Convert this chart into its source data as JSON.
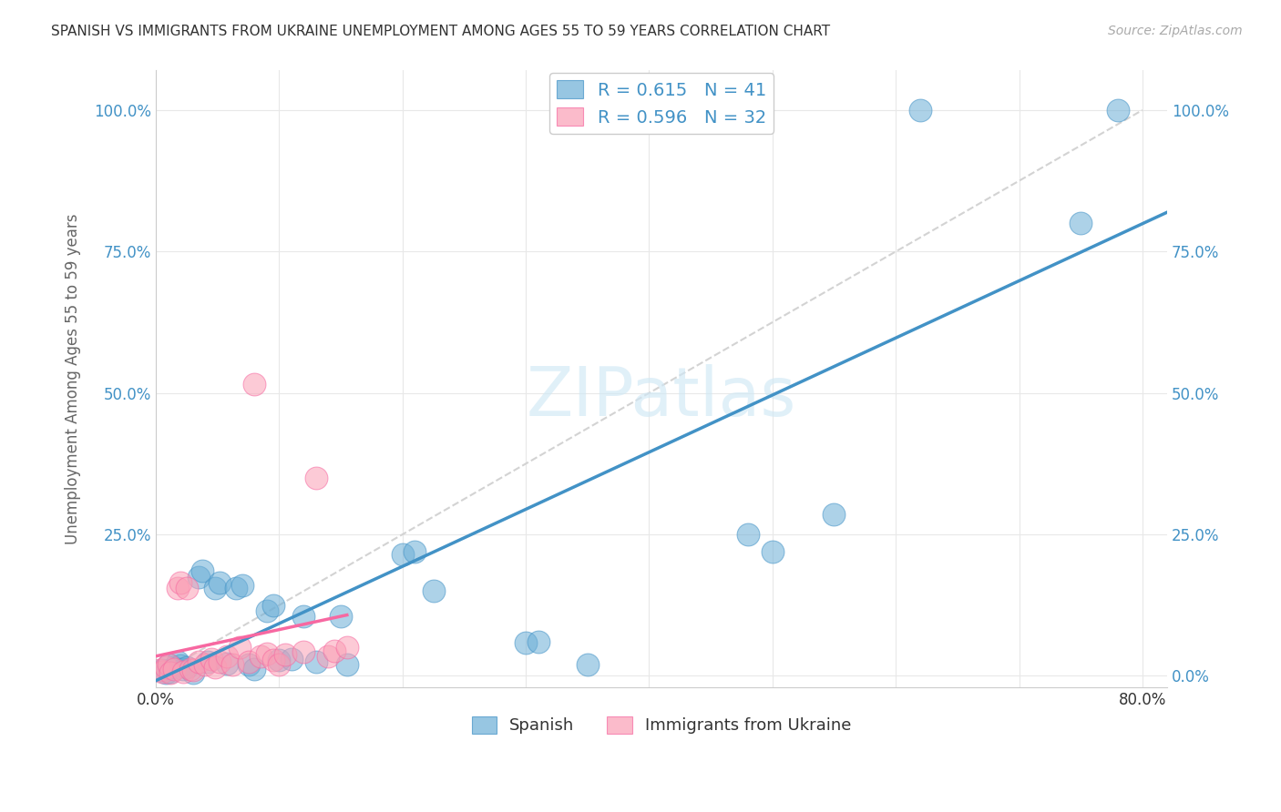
{
  "title": "SPANISH VS IMMIGRANTS FROM UKRAINE UNEMPLOYMENT AMONG AGES 55 TO 59 YEARS CORRELATION CHART",
  "source": "Source: ZipAtlas.com",
  "ylabel_label": "Unemployment Among Ages 55 to 59 years",
  "legend1_r": "0.615",
  "legend1_n": "41",
  "legend2_r": "0.596",
  "legend2_n": "32",
  "legend_label1": "Spanish",
  "legend_label2": "Immigrants from Ukraine",
  "blue_color": "#6baed6",
  "pink_color": "#fa9fb5",
  "reg_blue": "#4292c6",
  "reg_pink": "#f768a1",
  "r_n_color": "#4292c6",
  "blue_x": [
    0.005,
    0.008,
    0.01,
    0.012,
    0.015,
    0.018,
    0.02,
    0.022,
    0.025,
    0.03,
    0.035,
    0.038,
    0.042,
    0.048,
    0.052,
    0.058,
    0.065,
    0.07,
    0.075,
    0.08,
    0.09,
    0.095,
    0.1,
    0.11,
    0.12,
    0.13,
    0.15,
    0.155,
    0.2,
    0.21,
    0.225,
    0.3,
    0.31,
    0.35,
    0.36,
    0.48,
    0.5,
    0.55,
    0.62,
    0.75,
    0.78
  ],
  "blue_y": [
    0.01,
    0.005,
    0.02,
    0.008,
    0.015,
    0.025,
    0.018,
    0.012,
    0.015,
    0.005,
    0.175,
    0.185,
    0.025,
    0.155,
    0.165,
    0.022,
    0.155,
    0.16,
    0.02,
    0.012,
    0.115,
    0.125,
    0.028,
    0.03,
    0.105,
    0.025,
    0.105,
    0.02,
    0.215,
    0.22,
    0.15,
    0.058,
    0.06,
    0.02,
    1.0,
    0.25,
    0.22,
    0.285,
    1.0,
    0.8,
    1.0
  ],
  "pink_x": [
    0.003,
    0.005,
    0.008,
    0.01,
    0.012,
    0.015,
    0.018,
    0.02,
    0.022,
    0.025,
    0.028,
    0.03,
    0.035,
    0.04,
    0.045,
    0.048,
    0.052,
    0.058,
    0.062,
    0.068,
    0.075,
    0.08,
    0.085,
    0.09,
    0.095,
    0.1,
    0.105,
    0.12,
    0.13,
    0.14,
    0.145,
    0.155
  ],
  "pink_y": [
    0.01,
    0.008,
    0.015,
    0.02,
    0.005,
    0.012,
    0.155,
    0.165,
    0.008,
    0.155,
    0.012,
    0.01,
    0.025,
    0.02,
    0.03,
    0.015,
    0.025,
    0.035,
    0.02,
    0.05,
    0.025,
    0.515,
    0.035,
    0.04,
    0.028,
    0.02,
    0.038,
    0.042,
    0.35,
    0.035,
    0.045,
    0.05
  ],
  "xlim": [
    0,
    0.82
  ],
  "ylim": [
    -0.02,
    1.07
  ]
}
